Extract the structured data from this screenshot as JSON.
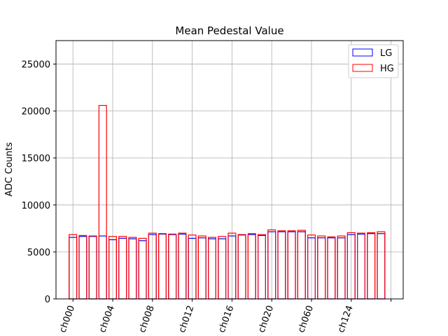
{
  "chart_data": {
    "type": "bar",
    "title": "Mean Pedestal Value",
    "xlabel": "",
    "ylabel": "ADC Counts",
    "ylim": [
      0,
      27500
    ],
    "yticks": [
      0,
      5000,
      10000,
      15000,
      20000,
      25000
    ],
    "xtick_labels": [
      "ch000",
      "ch004",
      "ch008",
      "ch012",
      "ch016",
      "ch020",
      "ch060",
      "ch124"
    ],
    "grid": true,
    "legend_position": "top-right",
    "series": [
      {
        "name": "LG",
        "color": "#0000ff",
        "values": [
          6550,
          6650,
          6650,
          6700,
          6300,
          6450,
          6400,
          6200,
          6850,
          6900,
          6850,
          6900,
          6450,
          6500,
          6400,
          6400,
          6700,
          6800,
          6850,
          6750,
          7150,
          7150,
          7150,
          7150,
          6500,
          6500,
          6500,
          6500,
          6850,
          6900,
          6950,
          6950
        ]
      },
      {
        "name": "HG",
        "color": "#ff0000",
        "values": [
          6850,
          6750,
          6700,
          20600,
          6650,
          6650,
          6550,
          6450,
          7000,
          6950,
          6900,
          7000,
          6800,
          6700,
          6550,
          6650,
          7000,
          6850,
          6950,
          6850,
          7350,
          7250,
          7250,
          7300,
          6800,
          6700,
          6600,
          6700,
          7050,
          7000,
          7050,
          7150
        ]
      }
    ]
  }
}
